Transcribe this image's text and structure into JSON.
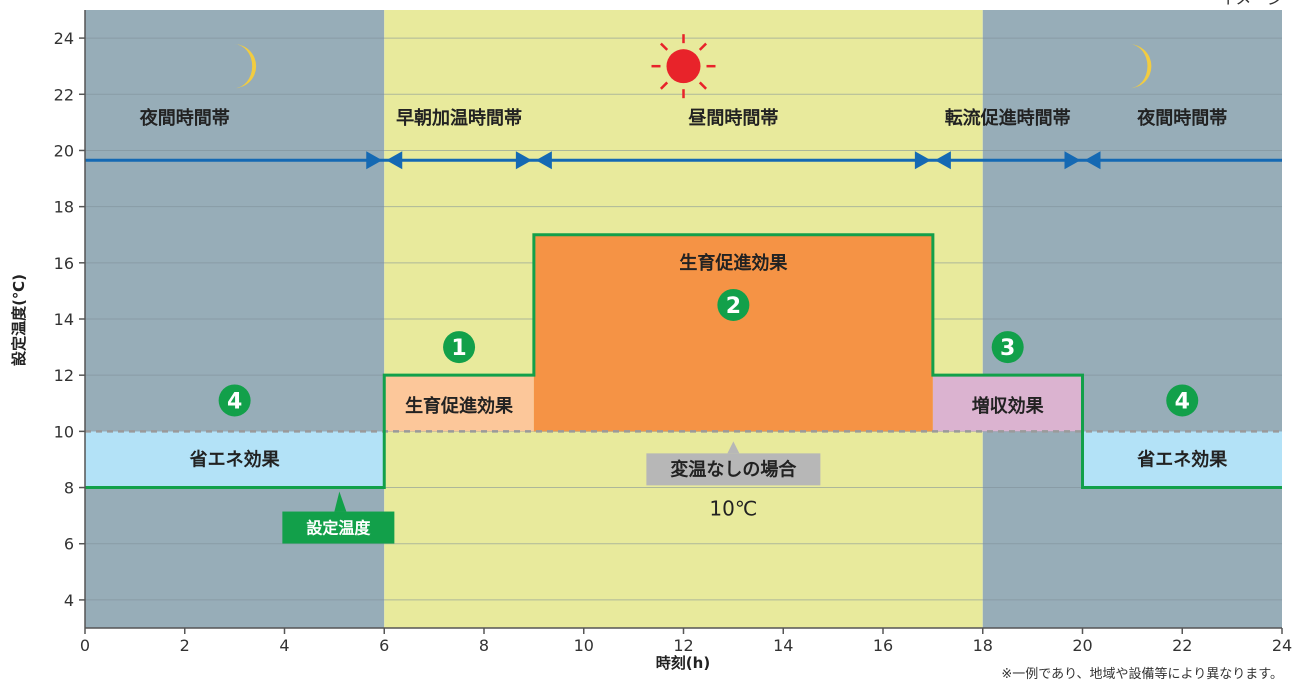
{
  "chart_data": {
    "type": "line",
    "xlabel": "時刻(h)",
    "ylabel": "設定温度(℃)",
    "xlim": [
      0,
      24
    ],
    "ylim": [
      3,
      25
    ],
    "x_ticks": [
      0,
      2,
      4,
      6,
      8,
      10,
      12,
      14,
      16,
      18,
      20,
      22,
      24
    ],
    "y_ticks": [
      4,
      6,
      8,
      10,
      12,
      14,
      16,
      18,
      20,
      22,
      24
    ],
    "grid": true,
    "series": [
      {
        "name": "設定温度",
        "x": [
          0,
          6,
          6,
          9,
          9,
          17,
          17,
          20,
          20,
          24
        ],
        "y": [
          8,
          8,
          12,
          12,
          17,
          17,
          12,
          12,
          8,
          8
        ]
      }
    ],
    "reference": {
      "label": "変温なしの場合",
      "value_label": "10℃",
      "y": 10
    },
    "period_bands": [
      {
        "label": "夜間時間帯",
        "from": 0,
        "to": 6
      },
      {
        "label": "早朝加温時間帯",
        "from": 6,
        "to": 9
      },
      {
        "label": "昼間時間帯",
        "from": 9,
        "to": 17
      },
      {
        "label": "転流促進時間帯",
        "from": 17,
        "to": 20
      },
      {
        "label": "夜間時間帯",
        "from": 20,
        "to": 24
      }
    ],
    "regions": [
      {
        "label": "省エネ効果",
        "from": 0,
        "to": 6,
        "y0": 8,
        "y1": 10,
        "color": "#b3e2f7"
      },
      {
        "label": "生育促進効果",
        "from": 6,
        "to": 9,
        "y0": 10,
        "y1": 12,
        "color": "#fcc79a"
      },
      {
        "label": "生育促進効果",
        "from": 9,
        "to": 17,
        "y0": 10,
        "y1": 17,
        "color": "#f59345"
      },
      {
        "label": "増収効果",
        "from": 17,
        "to": 20,
        "y0": 10,
        "y1": 12,
        "color": "#dbb3d0"
      },
      {
        "label": "省エネ効果",
        "from": 20,
        "to": 24,
        "y0": 8,
        "y1": 10,
        "color": "#b3e2f7"
      }
    ],
    "markers": [
      {
        "number": "1",
        "x": 7.5,
        "y": 13.0
      },
      {
        "number": "2",
        "x": 13.0,
        "y": 14.5
      },
      {
        "number": "3",
        "x": 18.5,
        "y": 13.0
      },
      {
        "number": "4",
        "x": 3.0,
        "y": 11.1
      },
      {
        "number": "4",
        "x": 22.0,
        "y": 11.1
      }
    ],
    "night_color": "#97adb8",
    "day_color": "#e8ea9c",
    "line_color": "#12a04a",
    "arrow_color": "#1569b3",
    "sun_color": "#e8232a",
    "moon_color": "#f2cc40",
    "tag_label": "設定温度",
    "top_right_text": "イメージ",
    "footnote": "※一例であり、地域や設備等により異なります。"
  }
}
